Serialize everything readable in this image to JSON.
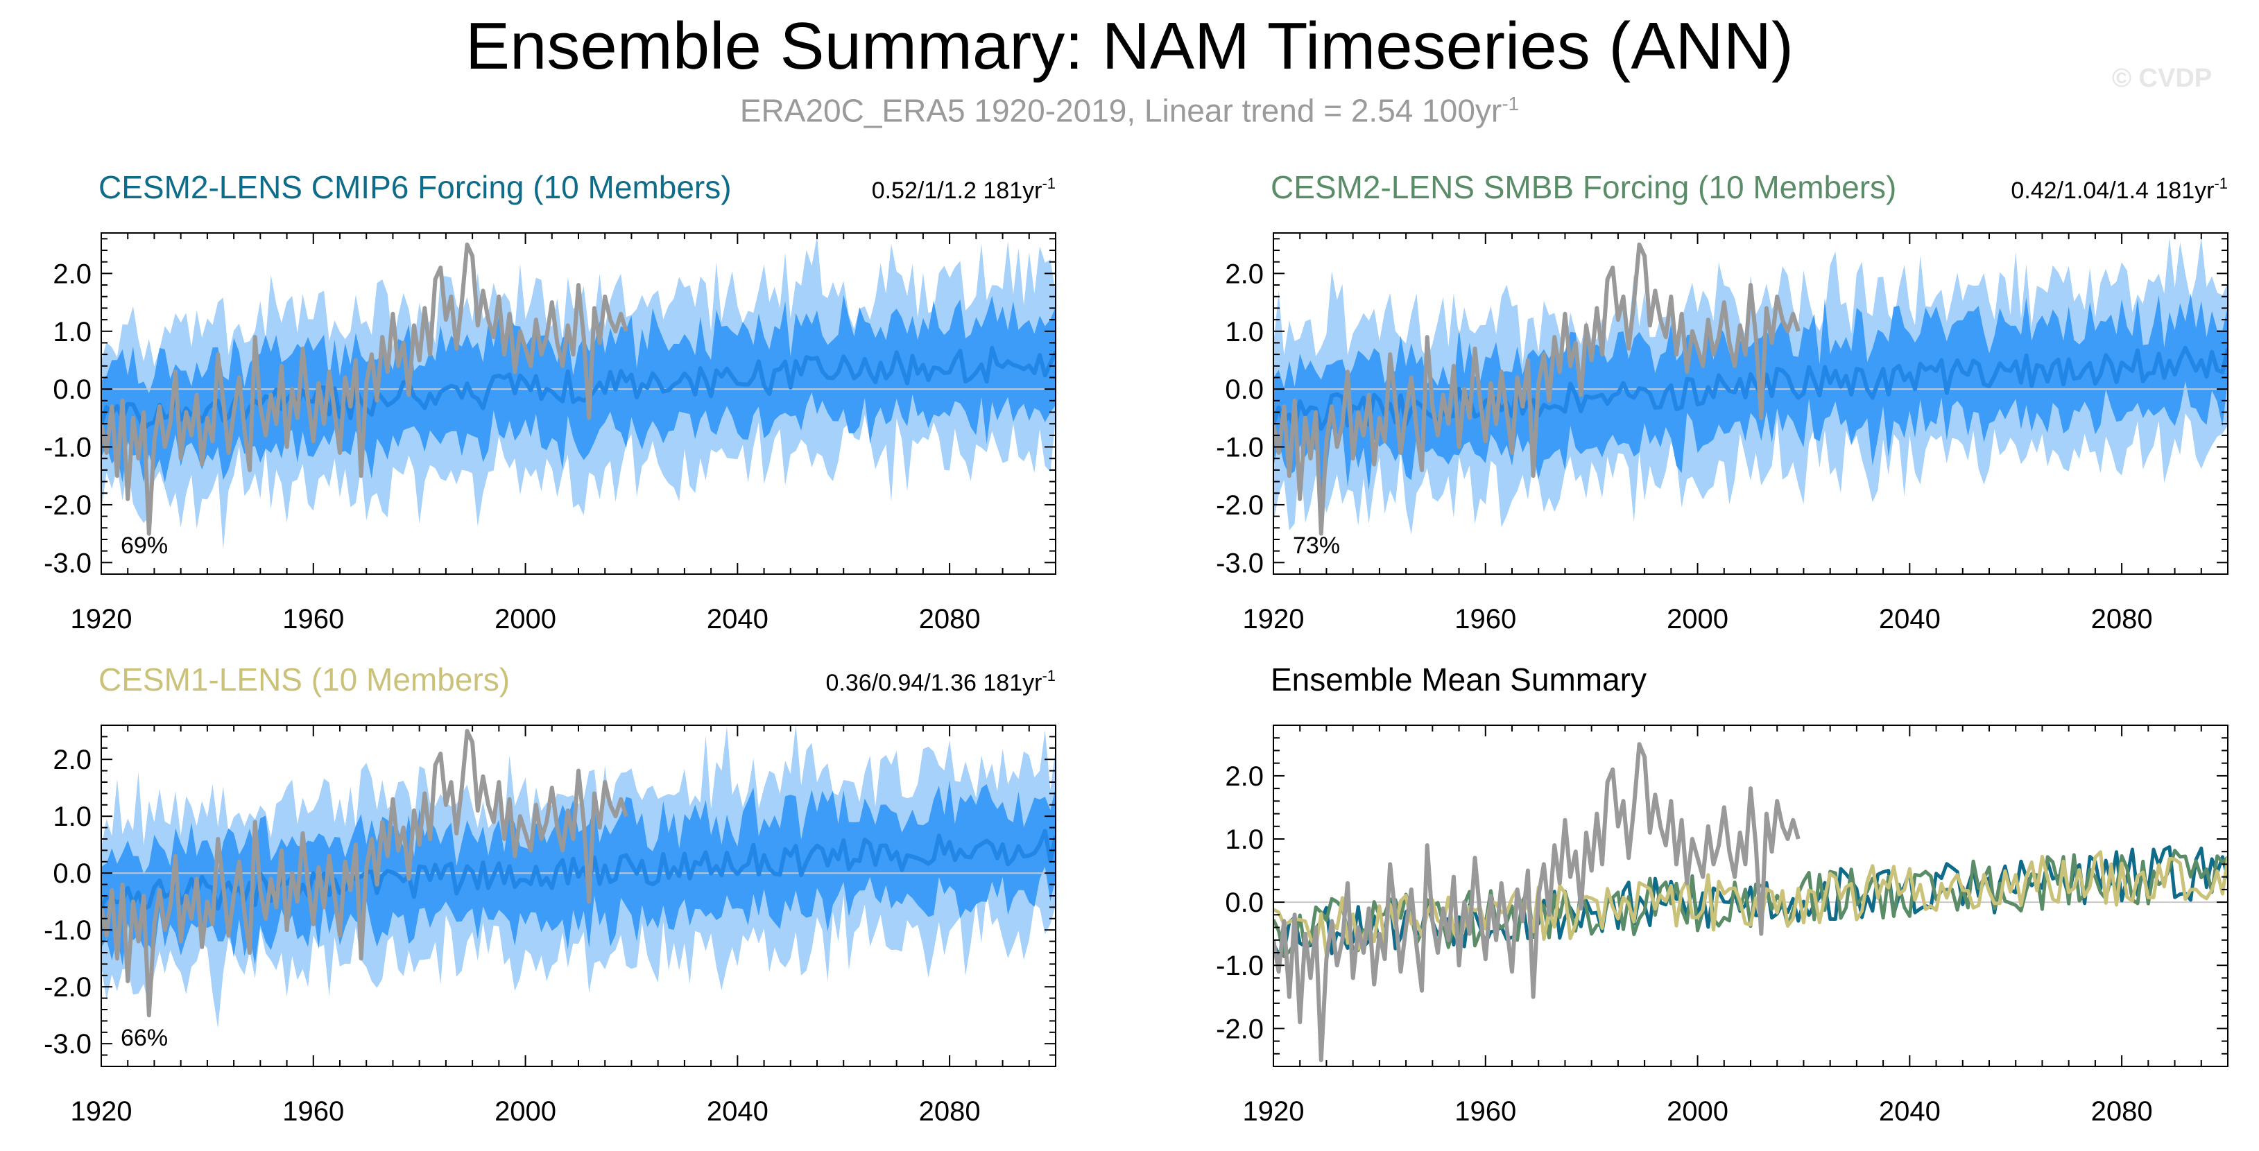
{
  "title": "Ensemble Summary: NAM Timeseries (ANN)",
  "subtitle": "ERA20C_ERA5 1920-2019, Linear trend = 2.54 100yr",
  "subtitle_sup": "-1",
  "watermark": "© CVDP",
  "colors": {
    "obs": "#999999",
    "band_outer": "#a6d1fa",
    "band_inner": "#3c9cf7",
    "ens_mean": "#2286e6",
    "cesm2_cmip6": "#0e6b89",
    "cesm2_smbb": "#5a8c68",
    "cesm1": "#cbc27a",
    "zero_line": "#c8c8c8"
  },
  "chart_data": [
    {
      "type": "area",
      "title": "CESM2-LENS CMIP6 Forcing (10 Members)",
      "trend_text": "0.52/1/1.2 181yr",
      "trend_sup": "-1",
      "percent_label": "69%",
      "xlim": [
        1920,
        2100
      ],
      "ylim": [
        -3.2,
        2.7
      ],
      "xticks": [
        "1920",
        "1960",
        "2000",
        "2040",
        "2080"
      ],
      "yticks": [
        "2.0",
        "1.0",
        "0.0",
        "-1.0",
        "-2.0",
        "-3.0"
      ],
      "seed": 11,
      "series": [
        "Observations ERA20C_ERA5",
        "Ensemble mean",
        "Inner spread",
        "Outer spread"
      ]
    },
    {
      "type": "area",
      "title": "CESM2-LENS SMBB Forcing (10 Members)",
      "trend_text": "0.42/1.04/1.4 181yr",
      "trend_sup": "-1",
      "percent_label": "73%",
      "xlim": [
        1920,
        2100
      ],
      "ylim": [
        -3.2,
        2.7
      ],
      "xticks": [
        "1920",
        "1960",
        "2000",
        "2040",
        "2080"
      ],
      "yticks": [
        "2.0",
        "1.0",
        "0.0",
        "-1.0",
        "-2.0",
        "-3.0"
      ],
      "seed": 23,
      "series": [
        "Observations ERA20C_ERA5",
        "Ensemble mean",
        "Inner spread",
        "Outer spread"
      ]
    },
    {
      "type": "area",
      "title": "CESM1-LENS (10 Members)",
      "trend_text": "0.36/0.94/1.36 181yr",
      "trend_sup": "-1",
      "percent_label": "66%",
      "xlim": [
        1920,
        2100
      ],
      "ylim": [
        -3.4,
        2.6
      ],
      "xticks": [
        "1920",
        "1960",
        "2000",
        "2040",
        "2080"
      ],
      "yticks": [
        "2.0",
        "1.0",
        "0.0",
        "-1.0",
        "-2.0",
        "-3.0"
      ],
      "seed": 37,
      "series": [
        "Observations ERA20C_ERA5",
        "Ensemble mean",
        "Inner spread",
        "Outer spread"
      ]
    },
    {
      "type": "line",
      "title": "Ensemble Mean Summary",
      "xlim": [
        1920,
        2100
      ],
      "ylim": [
        -2.6,
        2.8
      ],
      "xticks": [
        "1920",
        "1960",
        "2000",
        "2040",
        "2080"
      ],
      "yticks": [
        "2.0",
        "1.0",
        "0.0",
        "-1.0",
        "-2.0"
      ],
      "seed": 53,
      "series": [
        "Observations ERA20C_ERA5",
        "CESM2-LENS CMIP6 Forcing",
        "CESM2-LENS SMBB Forcing",
        "CESM1-LENS"
      ]
    }
  ],
  "obs_series": {
    "years": [
      1920,
      2019
    ],
    "values": [
      -0.6,
      -1.1,
      -0.3,
      -1.5,
      -0.2,
      -1.9,
      -0.5,
      -1.2,
      -0.4,
      -2.5,
      -0.9,
      -0.3,
      -1.0,
      -0.6,
      0.3,
      -1.2,
      -0.4,
      -0.8,
      -0.1,
      -1.3,
      -0.5,
      -0.9,
      0.6,
      -0.2,
      -1.1,
      -0.4,
      0.2,
      -0.7,
      -1.4,
      0.9,
      -0.3,
      -0.8,
      -0.1,
      -0.6,
      0.4,
      -1.0,
      0.0,
      -0.5,
      0.7,
      -0.2,
      -0.9,
      0.1,
      -0.6,
      0.3,
      -0.4,
      -1.1,
      0.2,
      -0.3,
      0.5,
      -1.5,
      0.1,
      0.6,
      -0.2,
      0.9,
      0.3,
      1.3,
      0.4,
      0.8,
      -0.1,
      1.1,
      0.5,
      1.4,
      0.6,
      1.9,
      2.1,
      1.2,
      1.6,
      0.7,
      1.5,
      2.5,
      2.3,
      1.1,
      1.7,
      1.2,
      0.9,
      1.6,
      0.6,
      1.3,
      0.3,
      1.0,
      0.7,
      0.4,
      1.2,
      0.6,
      0.9,
      1.5,
      0.8,
      0.4,
      1.1,
      0.6,
      1.8,
      0.9,
      -0.5,
      1.4,
      0.8,
      1.6,
      1.2,
      1.0,
      1.3,
      1.0
    ]
  }
}
